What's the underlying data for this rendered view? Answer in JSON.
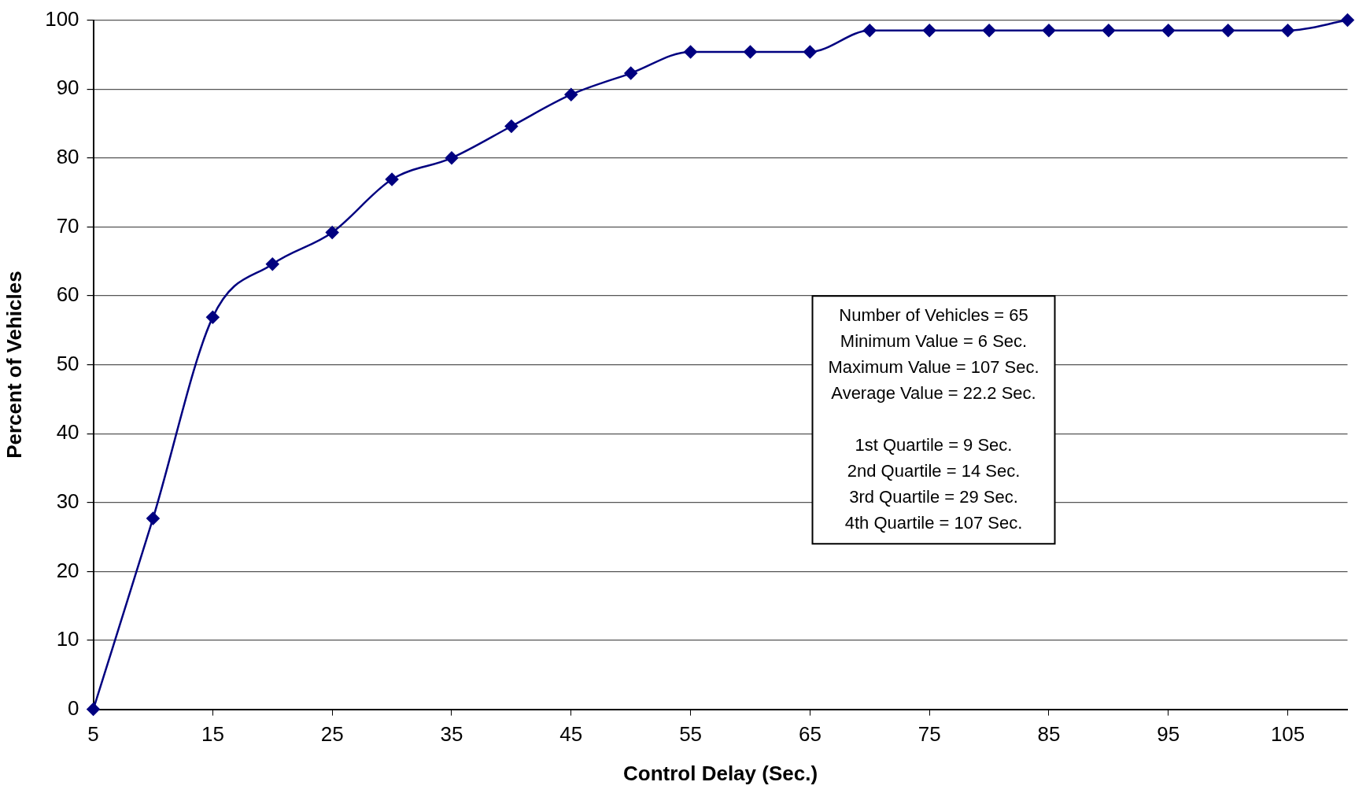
{
  "chart_data": {
    "type": "line",
    "xlabel": "Control Delay (Sec.)",
    "ylabel": "Percent of Vehicles",
    "x": [
      5,
      10,
      15,
      20,
      25,
      30,
      35,
      40,
      45,
      50,
      55,
      60,
      65,
      70,
      75,
      80,
      85,
      90,
      95,
      100,
      105,
      110
    ],
    "series": [
      {
        "color": "#000080",
        "values": [
          0,
          27.7,
          56.9,
          64.6,
          69.2,
          76.9,
          80,
          84.6,
          89.2,
          92.3,
          95.4,
          95.4,
          95.4,
          98.5,
          98.5,
          98.5,
          98.5,
          98.5,
          98.5,
          98.5,
          98.5,
          100
        ]
      }
    ],
    "xlim": [
      5,
      110
    ],
    "xticks": [
      5,
      15,
      25,
      35,
      45,
      55,
      65,
      75,
      85,
      95,
      105
    ],
    "ylim": [
      0,
      100
    ],
    "yticks": [
      0,
      10,
      20,
      30,
      40,
      50,
      60,
      70,
      80,
      90,
      100
    ],
    "grid": "y",
    "legend": false,
    "marker": "diamond",
    "line_style": "solid",
    "annotations": [
      "Number of Vehicles = 65\nMinimum Value = 6 Sec.\nMaximum Value = 107 Sec.\nAverage Value = 22.2 Sec.\n\n1st Quartile = 9 Sec.\n2nd Quartile = 14 Sec.\n3rd Quartile = 29 Sec.\n4th Quartile = 107 Sec."
    ]
  }
}
